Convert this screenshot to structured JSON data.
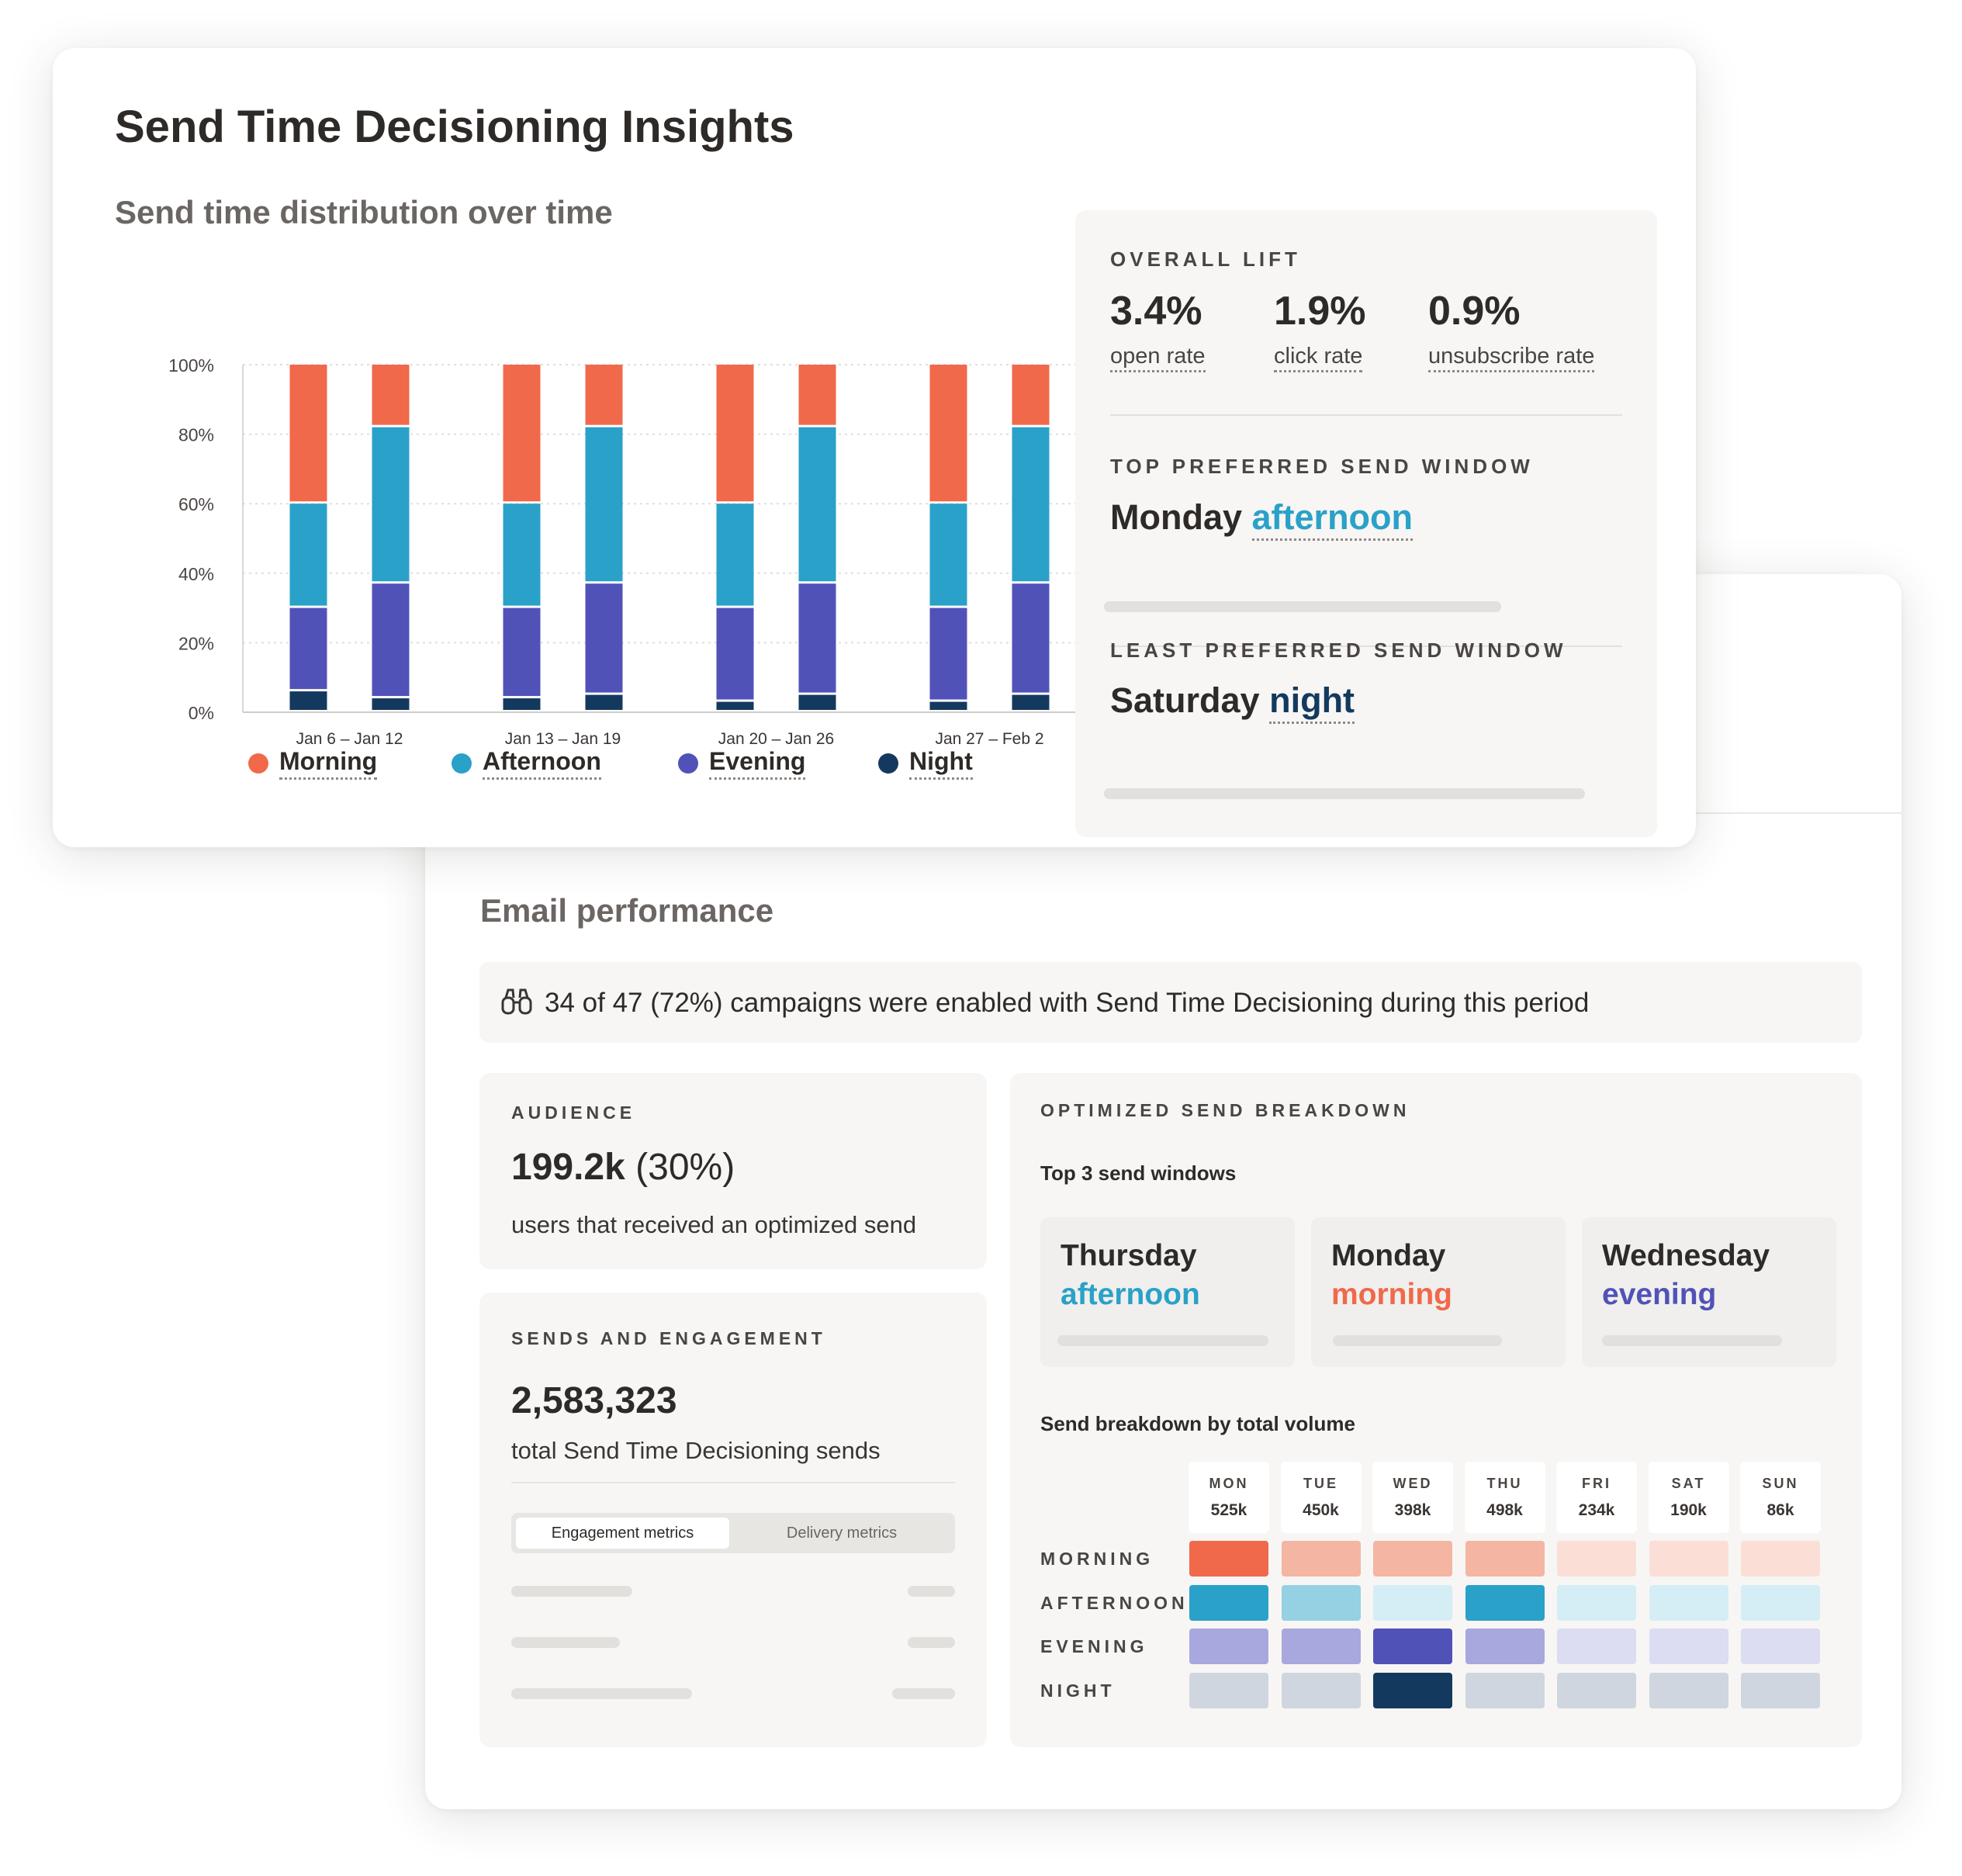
{
  "insights": {
    "title": "Send Time Decisioning Insights",
    "chart_title": "Send time distribution over time",
    "overall_lift": {
      "label": "OVERALL LIFT",
      "metrics": [
        {
          "value": "3.4%",
          "label": "open rate"
        },
        {
          "value": "1.9%",
          "label": "click rate"
        },
        {
          "value": "0.9%",
          "label": "unsubscribe rate"
        }
      ]
    },
    "top_window": {
      "label": "TOP PREFERRED SEND WINDOW",
      "day": "Monday",
      "time": "afternoon"
    },
    "least_window": {
      "label": "LEAST PREFERRED SEND WINDOW",
      "day": "Saturday",
      "time": "night"
    }
  },
  "chart_data": {
    "type": "bar",
    "stacked": true,
    "categories": [
      "Jan 6 – Jan 12",
      "Jan 13 – Jan 19",
      "Jan 20 – Jan 26",
      "Jan 27 – Feb 2"
    ],
    "bars_per_category": 2,
    "yticks": [
      "100%",
      "80%",
      "60%",
      "40%",
      "20%",
      "0%"
    ],
    "ylim": [
      0,
      100
    ],
    "grid": true,
    "legend_position": "bottom",
    "series": [
      {
        "name": "Night",
        "color": "#133a5e",
        "values": [
          [
            6,
            4
          ],
          [
            4,
            5
          ],
          [
            3,
            5
          ],
          [
            3,
            5
          ]
        ]
      },
      {
        "name": "Evening",
        "color": "#5152b8",
        "values": [
          [
            24,
            33
          ],
          [
            26,
            32
          ],
          [
            27,
            32
          ],
          [
            27,
            32
          ]
        ]
      },
      {
        "name": "Afternoon",
        "color": "#2aa1c8",
        "values": [
          [
            30,
            45
          ],
          [
            30,
            45
          ],
          [
            30,
            45
          ],
          [
            30,
            45
          ]
        ]
      },
      {
        "name": "Morning",
        "color": "#f0694a",
        "values": [
          [
            40,
            18
          ],
          [
            40,
            18
          ],
          [
            40,
            18
          ],
          [
            40,
            18
          ]
        ]
      }
    ],
    "legend": [
      "Morning",
      "Afternoon",
      "Evening",
      "Night"
    ]
  },
  "email": {
    "title": "Email performance",
    "notice": "34 of 47 (72%) campaigns were enabled with Send Time Decisioning during this period",
    "audience": {
      "label": "AUDIENCE",
      "value": "199.2k",
      "pct": "(30%)",
      "desc": "users that received an optimized send"
    },
    "sends": {
      "label": "SENDS AND ENGAGEMENT",
      "value": "2,583,323",
      "desc": "total Send Time Decisioning sends",
      "tabs": [
        "Engagement metrics",
        "Delivery metrics"
      ],
      "active_tab": 0
    },
    "breakdown": {
      "label": "OPTIMIZED SEND BREAKDOWN",
      "top_label": "Top 3 send windows",
      "top_windows": [
        {
          "day": "Thursday",
          "time": "afternoon",
          "color": "#2aa1c8"
        },
        {
          "day": "Monday",
          "time": "morning",
          "color": "#f0694a"
        },
        {
          "day": "Wednesday",
          "time": "evening",
          "color": "#5152b8"
        }
      ],
      "volume_label": "Send breakdown by total volume",
      "days": [
        {
          "day": "MON",
          "vol": "525k"
        },
        {
          "day": "TUE",
          "vol": "450k"
        },
        {
          "day": "WED",
          "vol": "398k"
        },
        {
          "day": "THU",
          "vol": "498k"
        },
        {
          "day": "FRI",
          "vol": "234k"
        },
        {
          "day": "SAT",
          "vol": "190k"
        },
        {
          "day": "SUN",
          "vol": "86k"
        }
      ],
      "rows": [
        {
          "label": "MORNING",
          "colors": [
            "#f0694a",
            "#f5b5a3",
            "#f5b5a3",
            "#f5b5a3",
            "#fbdfd7",
            "#fbdfd7",
            "#fbdfd7"
          ]
        },
        {
          "label": "AFTERNOON",
          "colors": [
            "#2aa1c8",
            "#96d0e3",
            "#d5edf5",
            "#2aa1c8",
            "#d5edf5",
            "#d5edf5",
            "#d5edf5"
          ]
        },
        {
          "label": "EVENING",
          "colors": [
            "#a8a8de",
            "#a8a8de",
            "#5152b8",
            "#a8a8de",
            "#dcdcf2",
            "#dcdcf2",
            "#dcdcf2"
          ]
        },
        {
          "label": "NIGHT",
          "colors": [
            "#d0d6df",
            "#d0d6df",
            "#133a5e",
            "#d0d6df",
            "#d0d6df",
            "#d0d6df",
            "#d0d6df"
          ]
        }
      ]
    }
  }
}
